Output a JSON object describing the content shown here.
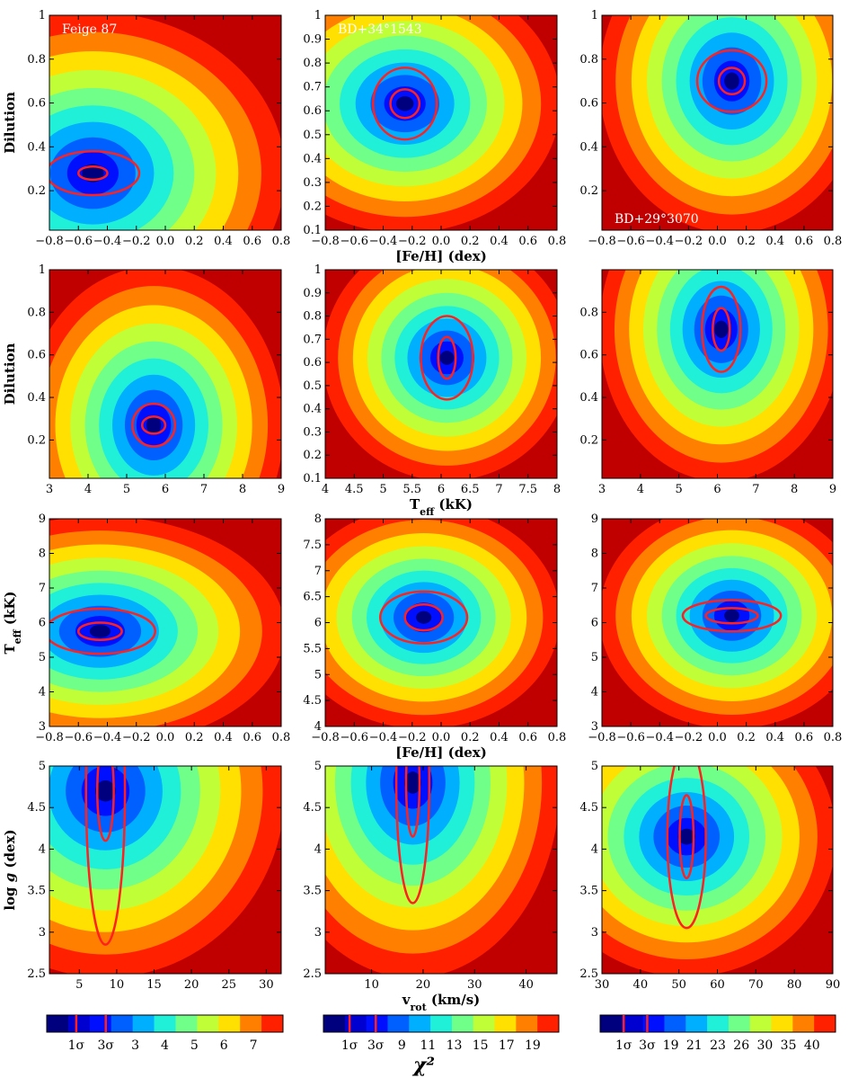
{
  "figure": {
    "colorbar_title": "χ²",
    "star_names": [
      "Feige 87",
      "BD+34°1543",
      "BD+29°3070"
    ]
  },
  "colors": {
    "jet_scale": [
      "#00007f",
      "#0000d0",
      "#0010ff",
      "#0060ff",
      "#00b0ff",
      "#20f0d8",
      "#70ff88",
      "#c0ff38",
      "#ffe000",
      "#ff8000",
      "#ff2000",
      "#c00000"
    ],
    "contour_sigma": "#ff2020"
  },
  "chart_data": [
    {
      "type": "heatmap",
      "row": 0,
      "col": 0,
      "title": "Feige 87",
      "xlabel": "",
      "ylabel": "Dilution",
      "xlim": [
        -0.8,
        0.8
      ],
      "ylim": [
        0.02,
        1.0
      ],
      "xticks": [
        -0.8,
        -0.6,
        -0.4,
        -0.2,
        0.0,
        0.2,
        0.4,
        0.6,
        0.8
      ],
      "yticks": [
        0.2,
        0.4,
        0.6,
        0.8,
        1.0
      ],
      "min": {
        "x": -0.5,
        "y": 0.28
      },
      "sigma_levels": [
        {
          "label": "1σ",
          "rx": 0.1,
          "ry": 0.03
        },
        {
          "label": "3σ",
          "rx": 0.32,
          "ry": 0.1
        }
      ]
    },
    {
      "type": "heatmap",
      "row": 0,
      "col": 1,
      "title": "BD+34°1543",
      "xlabel": "[Fe/H] (dex)",
      "ylabel": "",
      "xlim": [
        -0.8,
        0.8
      ],
      "ylim": [
        0.1,
        1.0
      ],
      "xticks": [
        -0.8,
        -0.6,
        -0.4,
        -0.2,
        0.0,
        0.2,
        0.4,
        0.6,
        0.8
      ],
      "yticks": [
        0.1,
        0.2,
        0.3,
        0.4,
        0.5,
        0.6,
        0.7,
        0.8,
        0.9,
        1.0
      ],
      "min": {
        "x": -0.25,
        "y": 0.63
      },
      "sigma_levels": [
        {
          "label": "1σ",
          "rx": 0.1,
          "ry": 0.06
        },
        {
          "label": "3σ",
          "rx": 0.22,
          "ry": 0.15
        }
      ]
    },
    {
      "type": "heatmap",
      "row": 0,
      "col": 2,
      "title": "BD+29°3070",
      "xlabel": "",
      "ylabel": "",
      "xlim": [
        -0.8,
        0.8
      ],
      "ylim": [
        0.02,
        1.0
      ],
      "xticks": [
        -0.8,
        -0.6,
        -0.4,
        -0.2,
        0.0,
        0.2,
        0.4,
        0.6,
        0.8
      ],
      "yticks": [
        0.2,
        0.4,
        0.6,
        0.8,
        1.0
      ],
      "min": {
        "x": 0.1,
        "y": 0.7
      },
      "sigma_levels": [
        {
          "label": "1σ",
          "rx": 0.09,
          "ry": 0.06
        },
        {
          "label": "3σ",
          "rx": 0.24,
          "ry": 0.14
        }
      ]
    },
    {
      "type": "heatmap",
      "row": 1,
      "col": 0,
      "title": "",
      "xlabel": "",
      "ylabel": "Dilution",
      "xlim": [
        3,
        9
      ],
      "ylim": [
        0.02,
        1.0
      ],
      "xticks": [
        3,
        4,
        5,
        6,
        7,
        8,
        9
      ],
      "yticks": [
        0.2,
        0.4,
        0.6,
        0.8,
        1.0
      ],
      "min": {
        "x": 5.7,
        "y": 0.27
      },
      "sigma_levels": [
        {
          "label": "1σ",
          "rx": 0.3,
          "ry": 0.04
        },
        {
          "label": "3σ",
          "rx": 0.55,
          "ry": 0.1
        }
      ]
    },
    {
      "type": "heatmap",
      "row": 1,
      "col": 1,
      "title": "",
      "xlabel": "T_eff (kK)",
      "ylabel": "",
      "xlim": [
        4.0,
        8.0
      ],
      "ylim": [
        0.1,
        1.0
      ],
      "xticks": [
        4.0,
        4.5,
        5.0,
        5.5,
        6.0,
        6.5,
        7.0,
        7.5,
        8.0
      ],
      "yticks": [
        0.1,
        0.2,
        0.3,
        0.4,
        0.5,
        0.6,
        0.7,
        0.8,
        0.9,
        1.0
      ],
      "min": {
        "x": 6.1,
        "y": 0.62
      },
      "sigma_levels": [
        {
          "label": "1σ",
          "rx": 0.15,
          "ry": 0.09
        },
        {
          "label": "3σ",
          "rx": 0.45,
          "ry": 0.18
        }
      ]
    },
    {
      "type": "heatmap",
      "row": 1,
      "col": 2,
      "title": "",
      "xlabel": "",
      "ylabel": "",
      "xlim": [
        3,
        9
      ],
      "ylim": [
        0.02,
        1.0
      ],
      "xticks": [
        3,
        4,
        5,
        6,
        7,
        8,
        9
      ],
      "yticks": [
        0.2,
        0.4,
        0.6,
        0.8
      ],
      "min": {
        "x": 6.1,
        "y": 0.72
      },
      "sigma_levels": [
        {
          "label": "1σ",
          "rx": 0.22,
          "ry": 0.1
        },
        {
          "label": "3σ",
          "rx": 0.5,
          "ry": 0.2
        }
      ]
    },
    {
      "type": "heatmap",
      "row": 2,
      "col": 0,
      "title": "",
      "xlabel": "",
      "ylabel": "T_eff (kK)",
      "xlim": [
        -0.8,
        0.8
      ],
      "ylim": [
        3,
        9
      ],
      "xticks": [
        -0.8,
        -0.6,
        -0.4,
        -0.2,
        0.0,
        0.2,
        0.4,
        0.6,
        0.8
      ],
      "yticks": [
        3,
        4,
        5,
        6,
        7,
        8,
        9
      ],
      "min": {
        "x": -0.45,
        "y": 5.75
      },
      "sigma_levels": [
        {
          "label": "1σ",
          "rx": 0.15,
          "ry": 0.25
        },
        {
          "label": "3σ",
          "rx": 0.38,
          "ry": 0.65
        }
      ]
    },
    {
      "type": "heatmap",
      "row": 2,
      "col": 1,
      "title": "",
      "xlabel": "[Fe/H] (dex)",
      "ylabel": "",
      "xlim": [
        -0.8,
        0.8
      ],
      "ylim": [
        4.0,
        8.0
      ],
      "xticks": [
        -0.8,
        -0.6,
        -0.4,
        -0.2,
        0.0,
        0.2,
        0.4,
        0.6,
        0.8
      ],
      "yticks": [
        4.0,
        4.5,
        5.0,
        5.5,
        6.0,
        6.5,
        7.0,
        7.5,
        8.0
      ],
      "min": {
        "x": -0.12,
        "y": 6.1
      },
      "sigma_levels": [
        {
          "label": "1σ",
          "rx": 0.13,
          "ry": 0.25
        },
        {
          "label": "3σ",
          "rx": 0.3,
          "ry": 0.5
        }
      ]
    },
    {
      "type": "heatmap",
      "row": 2,
      "col": 2,
      "title": "",
      "xlabel": "",
      "ylabel": "",
      "xlim": [
        -0.8,
        0.8
      ],
      "ylim": [
        3,
        9
      ],
      "xticks": [
        -0.8,
        -0.6,
        -0.4,
        -0.2,
        0.0,
        0.2,
        0.4,
        0.6,
        0.8
      ],
      "yticks": [
        3,
        4,
        5,
        6,
        7,
        8,
        9
      ],
      "min": {
        "x": 0.1,
        "y": 6.2
      },
      "sigma_levels": [
        {
          "label": "1σ",
          "rx": 0.18,
          "ry": 0.22
        },
        {
          "label": "3σ",
          "rx": 0.34,
          "ry": 0.45
        }
      ]
    },
    {
      "type": "heatmap",
      "row": 3,
      "col": 0,
      "title": "",
      "xlabel": "",
      "ylabel": "log g (dex)",
      "xlim": [
        1,
        32
      ],
      "ylim": [
        2.5,
        5.0
      ],
      "xticks": [
        5,
        10,
        15,
        20,
        25,
        30
      ],
      "yticks": [
        2.5,
        3.0,
        3.5,
        4.0,
        4.5,
        5.0
      ],
      "min": {
        "x": 8.5,
        "y": 4.7
      },
      "sigma_levels": [
        {
          "label": "1σ",
          "rx": 1.1,
          "ry": 0.6
        },
        {
          "label": "3σ",
          "rx": 2.6,
          "ry": 1.85
        }
      ]
    },
    {
      "type": "heatmap",
      "row": 3,
      "col": 1,
      "title": "",
      "xlabel": "v_rot (km/s)",
      "ylabel": "",
      "xlim": [
        1,
        46
      ],
      "ylim": [
        2.5,
        5.0
      ],
      "xticks": [
        10,
        20,
        30,
        40
      ],
      "yticks": [
        2.5,
        3.0,
        3.5,
        4.0,
        4.5,
        5.0
      ],
      "min": {
        "x": 18.0,
        "y": 4.8
      },
      "sigma_levels": [
        {
          "label": "1σ",
          "rx": 1.3,
          "ry": 0.65
        },
        {
          "label": "3σ",
          "rx": 3.2,
          "ry": 1.45
        }
      ]
    },
    {
      "type": "heatmap",
      "row": 3,
      "col": 2,
      "title": "",
      "xlabel": "",
      "ylabel": "",
      "xlim": [
        30,
        90
      ],
      "ylim": [
        2.5,
        5.0
      ],
      "xticks": [
        30,
        40,
        50,
        60,
        70,
        80,
        90
      ],
      "yticks": [
        2.5,
        3.0,
        3.5,
        4.0,
        4.5,
        5.0
      ],
      "min": {
        "x": 52,
        "y": 4.15
      },
      "sigma_levels": [
        {
          "label": "1σ",
          "rx": 1.8,
          "ry": 0.5
        },
        {
          "label": "3σ",
          "rx": 5.0,
          "ry": 1.1
        }
      ]
    }
  ],
  "colorbars": [
    {
      "labels": [
        "1σ",
        "3σ",
        "3",
        "4",
        "5",
        "6",
        "7"
      ]
    },
    {
      "labels": [
        "1σ",
        "3σ",
        "9",
        "11",
        "13",
        "15",
        "17",
        "19"
      ]
    },
    {
      "labels": [
        "1σ",
        "3σ",
        "19",
        "21",
        "23",
        "26",
        "30",
        "35",
        "40"
      ]
    }
  ]
}
